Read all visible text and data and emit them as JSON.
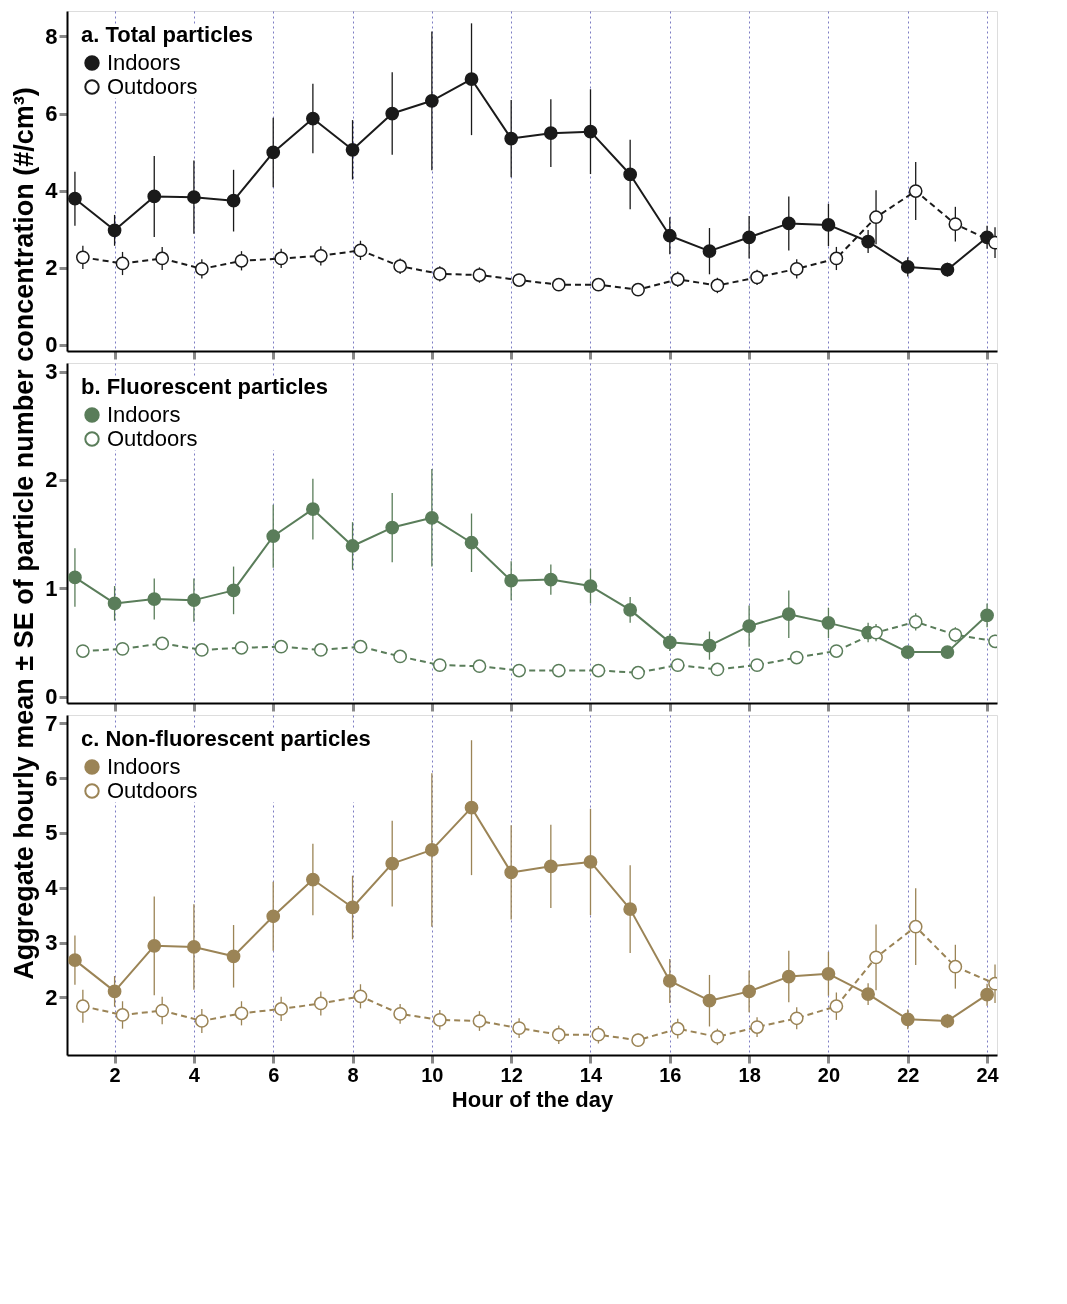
{
  "chart_data": [
    {
      "type": "line",
      "legend_title": "a. Total particles",
      "legend": "top left",
      "marker": "circle",
      "grid": "x",
      "tick_labels": "y",
      "xlim": [
        0.8,
        24.25
      ],
      "xticks": [
        2,
        4,
        6,
        8,
        10,
        12,
        14,
        16,
        18,
        20,
        22,
        24
      ],
      "ylim": [
        -0.16,
        8.66
      ],
      "yticks": [
        0,
        2,
        4,
        6,
        8
      ],
      "series": [
        {
          "name": "Indoors",
          "color": "#1a1a1a",
          "line_style": "solid",
          "x": [
            1,
            2,
            3,
            4,
            5,
            6,
            7,
            8,
            9,
            10,
            11,
            12,
            13,
            14,
            15,
            16,
            17,
            18,
            19,
            20,
            21,
            22,
            23,
            24
          ],
          "values": [
            3.79,
            2.97,
            3.85,
            3.83,
            3.74,
            4.99,
            5.87,
            5.06,
            6.0,
            6.33,
            6.89,
            5.35,
            5.49,
            5.53,
            4.42,
            2.83,
            2.43,
            2.79,
            3.15,
            3.11,
            2.68,
            2.02,
            1.95,
            2.79
          ],
          "errors": [
            0.7,
            0.4,
            1.05,
            0.95,
            0.8,
            0.9,
            0.9,
            0.77,
            1.07,
            1.8,
            1.45,
            1.0,
            0.88,
            1.1,
            0.9,
            0.48,
            0.6,
            0.55,
            0.7,
            0.55,
            0.3,
            0.25,
            0.18,
            0.3
          ]
        },
        {
          "name": "Outdoors",
          "color": "#1a1a1a",
          "line_style": "dashed",
          "x": [
            1.2,
            2.2,
            3.2,
            4.2,
            5.2,
            6.2,
            7.2,
            8.2,
            9.2,
            10.2,
            11.2,
            12.2,
            13.2,
            14.2,
            15.2,
            16.2,
            17.2,
            18.2,
            19.2,
            20.2,
            21.2,
            22.2,
            23.2,
            24.2
          ],
          "values": [
            2.27,
            2.11,
            2.24,
            1.97,
            2.18,
            2.24,
            2.31,
            2.45,
            2.04,
            1.84,
            1.81,
            1.68,
            1.56,
            1.56,
            1.43,
            1.7,
            1.54,
            1.75,
            1.97,
            2.24,
            3.31,
            3.99,
            3.13,
            2.65
          ],
          "errors": [
            0.3,
            0.3,
            0.3,
            0.25,
            0.25,
            0.25,
            0.25,
            0.25,
            0.2,
            0.2,
            0.2,
            0.15,
            0.15,
            0.15,
            0.1,
            0.2,
            0.2,
            0.2,
            0.25,
            0.3,
            0.7,
            0.75,
            0.45,
            0.4
          ]
        }
      ]
    },
    {
      "type": "line",
      "legend_title": "b. Fluorescent particles",
      "legend": "top left",
      "marker": "circle",
      "grid": "x",
      "tick_labels": "y",
      "ylabel": "Aggregate hourly mean ± SE of particle number concentration (#/cm³)",
      "xlim": [
        0.8,
        24.25
      ],
      "xticks": [
        2,
        4,
        6,
        8,
        10,
        12,
        14,
        16,
        18,
        20,
        22,
        24
      ],
      "ylim": [
        -0.06,
        3.08
      ],
      "yticks": [
        0,
        1,
        2,
        3
      ],
      "series": [
        {
          "name": "Indoors",
          "color": "#5a7d5a",
          "line_style": "solid",
          "x": [
            1,
            2,
            3,
            4,
            5,
            6,
            7,
            8,
            9,
            10,
            11,
            12,
            13,
            14,
            15,
            16,
            17,
            18,
            19,
            20,
            21,
            22,
            23,
            24
          ],
          "values": [
            1.1,
            0.86,
            0.9,
            0.89,
            0.98,
            1.48,
            1.73,
            1.39,
            1.56,
            1.65,
            1.42,
            1.07,
            1.08,
            1.02,
            0.8,
            0.5,
            0.47,
            0.65,
            0.76,
            0.68,
            0.59,
            0.41,
            0.41,
            0.75
          ],
          "errors": [
            0.27,
            0.16,
            0.19,
            0.2,
            0.22,
            0.29,
            0.28,
            0.22,
            0.32,
            0.45,
            0.27,
            0.18,
            0.14,
            0.16,
            0.12,
            0.08,
            0.13,
            0.19,
            0.22,
            0.14,
            0.09,
            0.05,
            0.03,
            0.11
          ]
        },
        {
          "name": "Outdoors",
          "color": "#5a7d5a",
          "line_style": "dashed",
          "x": [
            1.2,
            2.2,
            3.2,
            4.2,
            5.2,
            6.2,
            7.2,
            8.2,
            9.2,
            10.2,
            11.2,
            12.2,
            13.2,
            14.2,
            15.2,
            16.2,
            17.2,
            18.2,
            19.2,
            20.2,
            21.2,
            22.2,
            23.2,
            24.2
          ],
          "values": [
            0.42,
            0.44,
            0.49,
            0.43,
            0.45,
            0.46,
            0.43,
            0.46,
            0.37,
            0.29,
            0.28,
            0.24,
            0.24,
            0.24,
            0.22,
            0.29,
            0.25,
            0.29,
            0.36,
            0.42,
            0.59,
            0.69,
            0.57,
            0.51
          ],
          "errors": [
            0.04,
            0.04,
            0.05,
            0.04,
            0.04,
            0.04,
            0.04,
            0.04,
            0.03,
            0.03,
            0.03,
            0.03,
            0.03,
            0.03,
            0.03,
            0.03,
            0.03,
            0.03,
            0.04,
            0.05,
            0.08,
            0.08,
            0.07,
            0.06
          ]
        }
      ]
    },
    {
      "type": "line",
      "legend_title": "c. Non-fluorescent particles",
      "legend": "top left",
      "marker": "circle",
      "grid": "x",
      "xlabel": "Hour of the day",
      "xlim": [
        0.8,
        24.25
      ],
      "xticks": [
        2,
        4,
        6,
        8,
        10,
        12,
        14,
        16,
        18,
        20,
        22,
        24
      ],
      "ylim": [
        0.95,
        7.15
      ],
      "yticks": [
        2,
        3,
        4,
        5,
        6,
        7
      ],
      "series": [
        {
          "name": "Indoors",
          "color": "#9b8456",
          "line_style": "solid",
          "x": [
            1,
            2,
            3,
            4,
            5,
            6,
            7,
            8,
            9,
            10,
            11,
            12,
            13,
            14,
            15,
            16,
            17,
            18,
            19,
            20,
            21,
            22,
            23,
            24
          ],
          "values": [
            2.68,
            2.11,
            2.94,
            2.92,
            2.75,
            3.48,
            4.15,
            3.64,
            4.44,
            4.69,
            5.46,
            4.28,
            4.39,
            4.47,
            3.61,
            2.3,
            1.94,
            2.11,
            2.38,
            2.43,
            2.06,
            1.6,
            1.57,
            2.05
          ],
          "errors": [
            0.45,
            0.28,
            0.9,
            0.78,
            0.57,
            0.63,
            0.65,
            0.58,
            0.78,
            1.4,
            1.23,
            0.86,
            0.76,
            0.97,
            0.8,
            0.4,
            0.47,
            0.38,
            0.47,
            0.4,
            0.2,
            0.18,
            0.13,
            0.2
          ]
        },
        {
          "name": "Outdoors",
          "color": "#9b8456",
          "line_style": "dashed",
          "x": [
            1.2,
            2.2,
            3.2,
            4.2,
            5.2,
            6.2,
            7.2,
            8.2,
            9.2,
            10.2,
            11.2,
            12.2,
            13.2,
            14.2,
            15.2,
            16.2,
            17.2,
            18.2,
            19.2,
            20.2,
            21.2,
            22.2,
            23.2,
            24.2
          ],
          "values": [
            1.84,
            1.68,
            1.76,
            1.57,
            1.71,
            1.79,
            1.89,
            2.02,
            1.7,
            1.59,
            1.57,
            1.44,
            1.32,
            1.32,
            1.22,
            1.43,
            1.28,
            1.46,
            1.62,
            1.84,
            2.73,
            3.29,
            2.56,
            2.25
          ],
          "errors": [
            0.3,
            0.25,
            0.25,
            0.22,
            0.22,
            0.22,
            0.22,
            0.22,
            0.18,
            0.18,
            0.18,
            0.18,
            0.17,
            0.16,
            0.12,
            0.18,
            0.15,
            0.18,
            0.2,
            0.25,
            0.6,
            0.7,
            0.4,
            0.35
          ]
        }
      ]
    }
  ]
}
